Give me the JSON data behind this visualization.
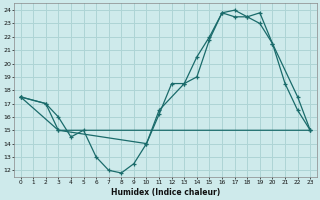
{
  "xlabel": "Humidex (Indice chaleur)",
  "background_color": "#ceeaeb",
  "grid_color": "#aed4d5",
  "line_color": "#1a6b6b",
  "xlim": [
    -0.5,
    23.5
  ],
  "ylim": [
    11.5,
    24.5
  ],
  "xticks": [
    0,
    1,
    2,
    3,
    4,
    5,
    6,
    7,
    8,
    9,
    10,
    11,
    12,
    13,
    14,
    15,
    16,
    17,
    18,
    19,
    20,
    21,
    22,
    23
  ],
  "yticks": [
    12,
    13,
    14,
    15,
    16,
    17,
    18,
    19,
    20,
    21,
    22,
    23,
    24
  ],
  "line1_x": [
    0,
    2,
    3,
    4,
    5,
    6,
    7,
    8,
    9,
    10,
    11,
    12,
    13,
    14,
    15,
    16,
    17,
    18,
    19,
    20,
    21,
    22,
    23
  ],
  "line1_y": [
    17.5,
    17.0,
    16.0,
    14.5,
    15.0,
    13.0,
    12.0,
    11.8,
    12.5,
    14.0,
    16.2,
    18.5,
    18.5,
    19.0,
    21.8,
    23.8,
    24.0,
    23.5,
    23.8,
    21.5,
    18.5,
    16.5,
    15.0
  ],
  "line2_x": [
    0,
    2,
    3,
    10,
    11,
    13,
    14,
    15,
    16,
    17,
    18,
    19,
    20,
    22,
    23
  ],
  "line2_y": [
    17.5,
    17.0,
    15.0,
    14.0,
    16.5,
    18.5,
    20.5,
    22.0,
    23.8,
    23.5,
    23.5,
    23.0,
    21.5,
    17.5,
    15.0
  ],
  "line3_x": [
    0,
    3,
    23
  ],
  "line3_y": [
    17.5,
    15.0,
    15.0
  ]
}
